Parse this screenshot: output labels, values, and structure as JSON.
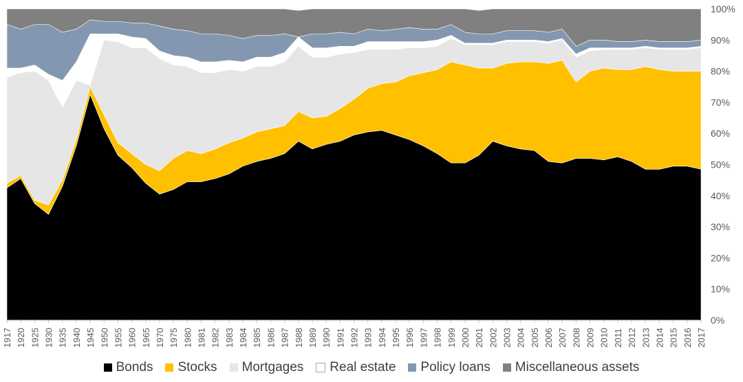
{
  "chart_data": {
    "type": "area",
    "stacked": true,
    "ylim": [
      0,
      100
    ],
    "y_unit": "%",
    "y_ticks": [
      "0%",
      "10%",
      "20%",
      "30%",
      "40%",
      "50%",
      "60%",
      "70%",
      "80%",
      "90%",
      "100%"
    ],
    "grid": false,
    "legend_position": "bottom",
    "categories": [
      "1917",
      "1920",
      "1925",
      "1930",
      "1935",
      "1940",
      "1945",
      "1950",
      "1955",
      "1960",
      "1965",
      "1970",
      "1975",
      "1980",
      "1981",
      "1982",
      "1983",
      "1984",
      "1985",
      "1986",
      "1987",
      "1988",
      "1989",
      "1990",
      "1991",
      "1992",
      "1993",
      "1994",
      "1995",
      "1996",
      "1997",
      "1998",
      "1999",
      "2000",
      "2001",
      "2002",
      "2003",
      "2004",
      "2005",
      "2006",
      "2007",
      "2008",
      "2009",
      "2010",
      "2011",
      "2012",
      "2013",
      "2014",
      "2015",
      "2016",
      "2017"
    ],
    "series": [
      {
        "name": "Bonds",
        "color": "#000000",
        "values": [
          42.5,
          45.5,
          37.5,
          34,
          43,
          56,
          72.5,
          61.5,
          53,
          49,
          44,
          40.5,
          42,
          44.5,
          44.5,
          45.5,
          47,
          49.5,
          51,
          52,
          53.5,
          57.5,
          55,
          56.5,
          57.5,
          59.5,
          60.5,
          61,
          59.5,
          58,
          56,
          53.5,
          50.5,
          50.5,
          53,
          57.5,
          56,
          55,
          54.5,
          51,
          50.5,
          52,
          52,
          51.5,
          52.5,
          51,
          48.5,
          48.5,
          49.5,
          49.5,
          48.5
        ]
      },
      {
        "name": "Stocks",
        "color": "#FFC000",
        "values": [
          1.5,
          1,
          1,
          3,
          2,
          2,
          2.5,
          4.5,
          4,
          4.5,
          6,
          7.5,
          10,
          10,
          9,
          9.5,
          10,
          9,
          9.5,
          9.5,
          9,
          9.5,
          10,
          9,
          10.5,
          11.5,
          14,
          15,
          17,
          20.5,
          23.5,
          27,
          32.5,
          31.5,
          28,
          23.5,
          26.5,
          28,
          28.5,
          31.5,
          33,
          24.5,
          28,
          29.5,
          28,
          29.5,
          33,
          32,
          30.5,
          30.5,
          31.5
        ]
      },
      {
        "name": "Mortgages",
        "color": "#E7E6E6",
        "values": [
          34,
          33,
          41.5,
          40,
          23.5,
          19,
          0.5,
          24,
          32.5,
          34,
          37.5,
          36,
          30,
          27,
          26,
          24.5,
          23.5,
          21.5,
          21,
          20,
          20.5,
          21,
          19.5,
          19,
          17.5,
          15,
          12.5,
          11,
          10.5,
          9,
          8,
          7.5,
          7.5,
          6.5,
          7.5,
          7.5,
          7,
          6.5,
          6.5,
          6.5,
          6.5,
          8,
          6.5,
          6,
          6.5,
          6.5,
          6,
          6.5,
          7,
          7,
          7.5
        ]
      },
      {
        "name": "Real estate",
        "color": "#FFFFFF",
        "values": [
          3,
          1.5,
          2,
          2,
          8.5,
          6,
          16.5,
          2,
          2.5,
          3.5,
          3,
          2.5,
          3,
          3,
          3.5,
          3.5,
          3,
          3,
          3,
          3,
          3,
          3,
          3,
          3,
          2.5,
          2,
          2.5,
          2.5,
          2.5,
          2,
          2,
          2,
          1,
          0.5,
          0.5,
          0.5,
          0.5,
          0.5,
          0.5,
          0.5,
          0.5,
          1,
          1,
          0.5,
          0.5,
          0.5,
          0.5,
          0.5,
          0.5,
          0.5,
          0.5
        ]
      },
      {
        "name": "Policy loans",
        "color": "#8497B0",
        "values": [
          14,
          12.5,
          13,
          16,
          15.5,
          10.5,
          4.5,
          4,
          4,
          4.5,
          5,
          8,
          8.5,
          8.5,
          9,
          9,
          8,
          7.5,
          7,
          7,
          6,
          0,
          4.5,
          4.5,
          4.5,
          4,
          4,
          3.5,
          4,
          4.5,
          4,
          3.5,
          3.5,
          3.5,
          3,
          3,
          3,
          3,
          3,
          3,
          3,
          2.5,
          2.5,
          2.5,
          2,
          2,
          2,
          2,
          2,
          2,
          2
        ]
      },
      {
        "name": "Miscellaneous assets",
        "color": "#808080",
        "values": [
          5,
          6.5,
          5,
          5,
          7.5,
          6.5,
          3.5,
          4,
          4,
          4.5,
          4.5,
          5.5,
          6.5,
          7,
          8,
          8,
          8.5,
          9.5,
          8.5,
          8.5,
          8,
          8.5,
          8,
          8,
          7.5,
          8,
          6.5,
          7,
          6.5,
          6,
          6.5,
          6.5,
          5,
          7.5,
          7.5,
          8,
          7,
          7,
          7,
          7.5,
          6.5,
          12,
          10,
          10,
          10.5,
          10.5,
          10,
          10.5,
          10.5,
          10.5,
          10
        ]
      }
    ]
  }
}
